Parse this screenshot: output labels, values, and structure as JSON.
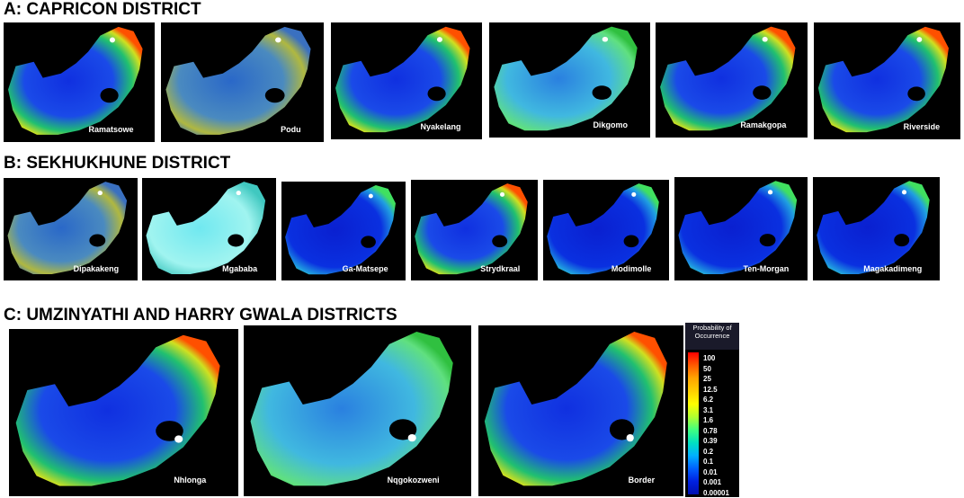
{
  "sections": [
    {
      "title": "A: CAPRICON DISTRICT",
      "panels": [
        "Ramatsowe",
        "Podu",
        "Nyakelang",
        "Dikgomo",
        "Ramakgopa",
        "Riverside"
      ]
    },
    {
      "title": "B: SEKHUKHUNE DISTRICT",
      "panels": [
        "Dipakakeng",
        "Mgababa",
        "Ga-Matsepe",
        "Strydkraal",
        "Modimolle",
        "Ten-Morgan",
        "Magakadimeng"
      ]
    },
    {
      "title": "C: UMZINYATHI  AND HARRY GWALA DISTRICTS",
      "panels": [
        "Nhlonga",
        "Nqgokozweni",
        "Border"
      ]
    }
  ],
  "legend": {
    "title": "Probability of Occurrence",
    "labels": [
      "100",
      "50",
      "25",
      "12.5",
      "6.2",
      "3.1",
      "1.6",
      "0.78",
      "0.39",
      "0.2",
      "0.1",
      "0.01",
      "0.001",
      "0.00001"
    ]
  }
}
